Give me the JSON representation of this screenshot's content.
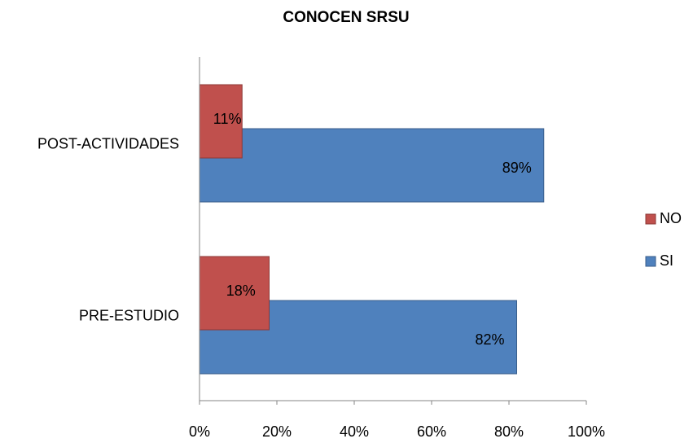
{
  "chart_data": {
    "type": "barh",
    "title": "CONOCEN SRSU",
    "categories": [
      "PRE-ESTUDIO",
      "POST-ACTIVIDADES"
    ],
    "series": [
      {
        "name": "NO",
        "color": "#c0504d",
        "values": [
          18,
          11
        ],
        "value_labels": [
          "18%",
          "11%"
        ]
      },
      {
        "name": "SI",
        "color": "#4f81bd",
        "values": [
          82,
          89
        ],
        "value_labels": [
          "82%",
          "89%"
        ]
      }
    ],
    "xlim": [
      0,
      100
    ],
    "xticks": [
      {
        "value": 0,
        "label": "0%"
      },
      {
        "value": 20,
        "label": "20%"
      },
      {
        "value": 40,
        "label": "40%"
      },
      {
        "value": 60,
        "label": "60%"
      },
      {
        "value": 80,
        "label": "80%"
      },
      {
        "value": 100,
        "label": "100%"
      }
    ],
    "legend": "right"
  }
}
